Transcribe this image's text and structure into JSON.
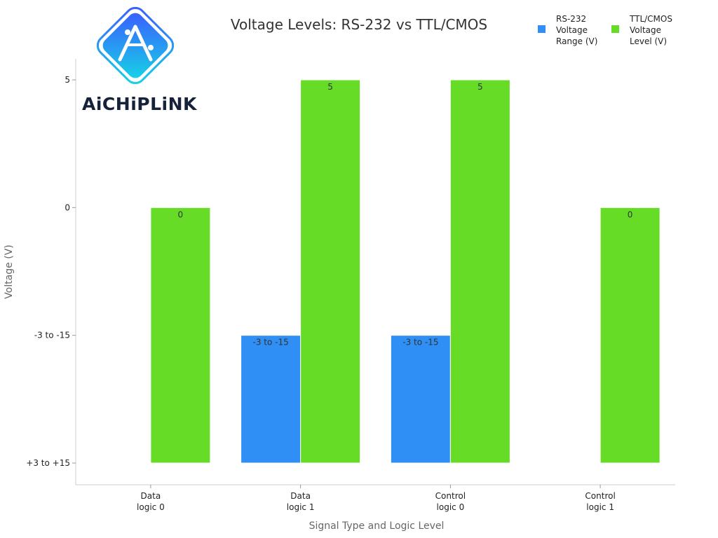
{
  "chart_data": {
    "type": "bar",
    "title": "Voltage Levels: RS-232 vs TTL/CMOS",
    "xlabel": "Signal Type and Logic Level",
    "ylabel": "Voltage (V)",
    "categories": [
      [
        "Data",
        "logic 0"
      ],
      [
        "Data",
        "logic 1"
      ],
      [
        "Control",
        "logic 0"
      ],
      [
        "Control",
        "logic 1"
      ]
    ],
    "y_categories": [
      "+3 to +15",
      "-3 to -15",
      "0",
      "5"
    ],
    "series": [
      {
        "name": "RS-232 Voltage Range (V)",
        "legend_lines": [
          "RS-232",
          "Voltage",
          "Range (V)"
        ],
        "color": "#2f8ff5",
        "values": [
          "+3 to +15",
          "-3 to -15",
          "-3 to -15",
          "+3 to +15"
        ],
        "labels": [
          "",
          "-3 to -15",
          "-3 to -15",
          ""
        ]
      },
      {
        "name": "TTL/CMOS Voltage Level (V)",
        "legend_lines": [
          "TTL/CMOS",
          "Voltage",
          "Level (V)"
        ],
        "color": "#66dc27",
        "values": [
          "0",
          "5",
          "5",
          "0"
        ],
        "labels": [
          "0",
          "5",
          "5",
          "0"
        ]
      }
    ],
    "grid": false,
    "legend_position": "top-right"
  },
  "logo": {
    "brand_text": "AiCHiPLiNK",
    "icon": "chip-link-a-icon",
    "colors": [
      "#3b5bff",
      "#16d5e6"
    ]
  }
}
